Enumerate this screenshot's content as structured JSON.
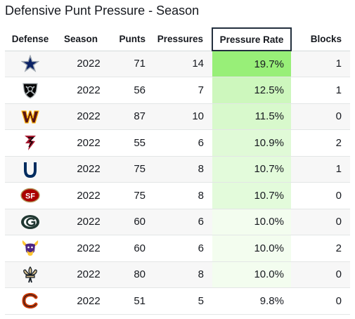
{
  "title": "Defensive Punt Pressure - Season",
  "columns": {
    "defense": "Defense",
    "season": "Season",
    "punts": "Punts",
    "pressures": "Pressures",
    "rate": "Pressure Rate",
    "blocks": "Blocks"
  },
  "sort_column": "Pressure Rate",
  "rows": [
    {
      "team_icon": "cowboys-star-icon",
      "season": "2022",
      "punts": "71",
      "pressures": "14",
      "rate": "19.7%",
      "rate_value": 19.7,
      "blocks": "1"
    },
    {
      "team_icon": "raiders-shield-icon",
      "season": "2022",
      "punts": "56",
      "pressures": "7",
      "rate": "12.5%",
      "rate_value": 12.5,
      "blocks": "1"
    },
    {
      "team_icon": "commanders-w-icon",
      "season": "2022",
      "punts": "87",
      "pressures": "10",
      "rate": "11.5%",
      "rate_value": 11.5,
      "blocks": "0"
    },
    {
      "team_icon": "falcons-icon",
      "season": "2022",
      "punts": "55",
      "pressures": "6",
      "rate": "10.9%",
      "rate_value": 10.9,
      "blocks": "2"
    },
    {
      "team_icon": "colts-horseshoe-icon",
      "season": "2022",
      "punts": "75",
      "pressures": "8",
      "rate": "10.7%",
      "rate_value": 10.7,
      "blocks": "1"
    },
    {
      "team_icon": "49ers-sf-icon",
      "season": "2022",
      "punts": "75",
      "pressures": "8",
      "rate": "10.7%",
      "rate_value": 10.7,
      "blocks": "0"
    },
    {
      "team_icon": "packers-g-icon",
      "season": "2022",
      "punts": "60",
      "pressures": "6",
      "rate": "10.0%",
      "rate_value": 10.0,
      "blocks": "0"
    },
    {
      "team_icon": "vikings-icon",
      "season": "2022",
      "punts": "60",
      "pressures": "6",
      "rate": "10.0%",
      "rate_value": 10.0,
      "blocks": "2"
    },
    {
      "team_icon": "saints-fleur-de-lis-icon",
      "season": "2022",
      "punts": "80",
      "pressures": "8",
      "rate": "10.0%",
      "rate_value": 10.0,
      "blocks": "0"
    },
    {
      "team_icon": "bears-c-icon",
      "season": "2022",
      "punts": "51",
      "pressures": "5",
      "rate": "9.8%",
      "rate_value": 9.8,
      "blocks": "0"
    }
  ],
  "colors": {
    "heat_high": "#98ef78",
    "heat_low": "#ffffff",
    "header_border": "#232f3e",
    "row_stripe": "#f7f7f7"
  }
}
